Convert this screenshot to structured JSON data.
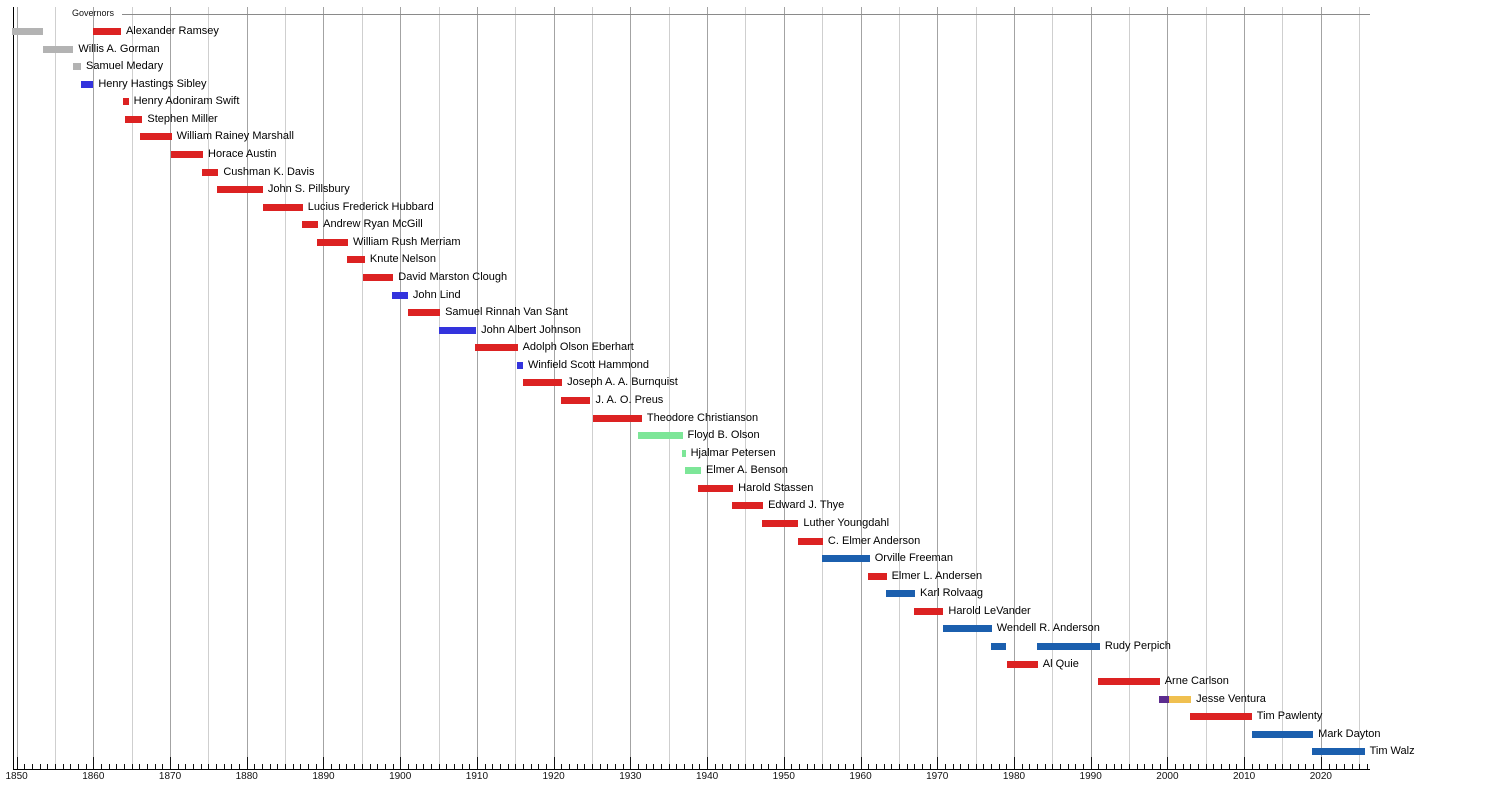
{
  "chart_data": {
    "type": "timeline",
    "title": "Governors",
    "subtitle": "",
    "x_axis": {
      "unit": "year",
      "range": [
        1849.4,
        2026.4
      ],
      "tick_labels": [
        1850,
        1860,
        1870,
        1880,
        1890,
        1900,
        1910,
        1920,
        1930,
        1940,
        1950,
        1960,
        1970,
        1980,
        1990,
        2000,
        2010,
        2020
      ],
      "gridline_step": 5,
      "gridline_start": 1850,
      "gridline_end": 2025,
      "minor_tick_step": 1,
      "grid_on": true
    },
    "party_colors": {
      "territorial": "#b3b3b3",
      "republican": "#dc2222",
      "democratic": "#3333dd",
      "dfl": "#1b5fae",
      "farmer_labor": "#7de698",
      "reform": "#5c2c8e",
      "independence": "#f0c050"
    },
    "rows": [
      {
        "name": "Alexander Ramsey",
        "terms": [
          {
            "party": "territorial",
            "from": 1849.4,
            "to": 1853.4
          },
          {
            "party": "republican",
            "from": 1860.0,
            "to": 1863.6
          }
        ]
      },
      {
        "name": "Willis A. Gorman",
        "terms": [
          {
            "party": "territorial",
            "from": 1853.4,
            "to": 1857.4
          }
        ]
      },
      {
        "name": "Samuel Medary",
        "terms": [
          {
            "party": "territorial",
            "from": 1857.4,
            "to": 1858.4
          }
        ]
      },
      {
        "name": "Henry Hastings Sibley",
        "terms": [
          {
            "party": "democratic",
            "from": 1858.4,
            "to": 1860.0
          }
        ]
      },
      {
        "name": "Henry Adoniram Swift",
        "terms": [
          {
            "party": "republican",
            "from": 1863.9,
            "to": 1864.6
          }
        ]
      },
      {
        "name": "Stephen Miller",
        "terms": [
          {
            "party": "republican",
            "from": 1864.1,
            "to": 1866.4
          }
        ]
      },
      {
        "name": "William Rainey Marshall",
        "terms": [
          {
            "party": "republican",
            "from": 1866.1,
            "to": 1870.2
          }
        ]
      },
      {
        "name": "Horace Austin",
        "terms": [
          {
            "party": "republican",
            "from": 1870.1,
            "to": 1874.3
          }
        ]
      },
      {
        "name": "Cushman K. Davis",
        "terms": [
          {
            "party": "republican",
            "from": 1874.2,
            "to": 1876.3
          }
        ]
      },
      {
        "name": "John S. Pillsbury",
        "terms": [
          {
            "party": "republican",
            "from": 1876.1,
            "to": 1882.1
          }
        ]
      },
      {
        "name": "Lucius Frederick Hubbard",
        "terms": [
          {
            "party": "republican",
            "from": 1882.1,
            "to": 1887.3
          }
        ]
      },
      {
        "name": "Andrew Ryan McGill",
        "terms": [
          {
            "party": "republican",
            "from": 1887.2,
            "to": 1889.3
          }
        ]
      },
      {
        "name": "William Rush Merriam",
        "terms": [
          {
            "party": "republican",
            "from": 1889.2,
            "to": 1893.2
          }
        ]
      },
      {
        "name": "Knute Nelson",
        "terms": [
          {
            "party": "republican",
            "from": 1893.1,
            "to": 1895.4
          }
        ]
      },
      {
        "name": "David Marston Clough",
        "terms": [
          {
            "party": "republican",
            "from": 1895.2,
            "to": 1899.1
          }
        ]
      },
      {
        "name": "John Lind",
        "terms": [
          {
            "party": "democratic",
            "from": 1898.9,
            "to": 1901.0
          }
        ]
      },
      {
        "name": "Samuel Rinnah Van Sant",
        "terms": [
          {
            "party": "republican",
            "from": 1901.0,
            "to": 1905.2
          }
        ]
      },
      {
        "name": "John Albert Johnson",
        "terms": [
          {
            "party": "democratic",
            "from": 1905.1,
            "to": 1909.9
          }
        ]
      },
      {
        "name": "Adolph Olson Eberhart",
        "terms": [
          {
            "party": "republican",
            "from": 1909.8,
            "to": 1915.3
          }
        ]
      },
      {
        "name": "Winfield Scott Hammond",
        "terms": [
          {
            "party": "democratic",
            "from": 1915.2,
            "to": 1916.0
          }
        ]
      },
      {
        "name": "Joseph A. A. Burnquist",
        "terms": [
          {
            "party": "republican",
            "from": 1916.0,
            "to": 1921.1
          }
        ]
      },
      {
        "name": "J. A. O. Preus",
        "terms": [
          {
            "party": "republican",
            "from": 1921.0,
            "to": 1924.8
          }
        ]
      },
      {
        "name": "Theodore Christianson",
        "terms": [
          {
            "party": "republican",
            "from": 1925.1,
            "to": 1931.5
          }
        ]
      },
      {
        "name": "Floyd B. Olson",
        "terms": [
          {
            "party": "farmer_labor",
            "from": 1931.0,
            "to": 1936.8
          }
        ]
      },
      {
        "name": "Hjalmar Petersen",
        "terms": [
          {
            "party": "farmer_labor",
            "from": 1936.7,
            "to": 1937.2
          }
        ]
      },
      {
        "name": "Elmer A. Benson",
        "terms": [
          {
            "party": "farmer_labor",
            "from": 1937.1,
            "to": 1939.2
          }
        ]
      },
      {
        "name": "Harold Stassen",
        "terms": [
          {
            "party": "republican",
            "from": 1938.8,
            "to": 1943.4
          }
        ]
      },
      {
        "name": "Edward J. Thye",
        "terms": [
          {
            "party": "republican",
            "from": 1943.3,
            "to": 1947.3
          }
        ]
      },
      {
        "name": "Luther Youngdahl",
        "terms": [
          {
            "party": "republican",
            "from": 1947.2,
            "to": 1951.9
          }
        ]
      },
      {
        "name": "C. Elmer Anderson",
        "terms": [
          {
            "party": "republican",
            "from": 1951.8,
            "to": 1955.1
          }
        ]
      },
      {
        "name": "Orville Freeman",
        "terms": [
          {
            "party": "dfl",
            "from": 1955.0,
            "to": 1961.2
          }
        ]
      },
      {
        "name": "Elmer L. Andersen",
        "terms": [
          {
            "party": "republican",
            "from": 1961.0,
            "to": 1963.4
          }
        ]
      },
      {
        "name": "Karl Rolvaag",
        "terms": [
          {
            "party": "dfl",
            "from": 1963.3,
            "to": 1967.1
          }
        ]
      },
      {
        "name": "Harold LeVander",
        "terms": [
          {
            "party": "republican",
            "from": 1967.0,
            "to": 1970.8
          }
        ]
      },
      {
        "name": "Wendell R. Anderson",
        "terms": [
          {
            "party": "dfl",
            "from": 1970.7,
            "to": 1977.1
          }
        ]
      },
      {
        "name": "Rudy Perpich",
        "terms": [
          {
            "party": "dfl",
            "from": 1977.0,
            "to": 1978.9
          },
          {
            "party": "dfl",
            "from": 1983.0,
            "to": 1991.2
          }
        ]
      },
      {
        "name": "Al Quie",
        "terms": [
          {
            "party": "republican",
            "from": 1979.1,
            "to": 1983.1
          }
        ]
      },
      {
        "name": "Arne Carlson",
        "terms": [
          {
            "party": "republican",
            "from": 1990.9,
            "to": 1999.0
          }
        ]
      },
      {
        "name": "Jesse Ventura",
        "terms": [
          {
            "party": "reform",
            "from": 1998.9,
            "to": 2000.2
          },
          {
            "party": "independence",
            "from": 2000.2,
            "to": 2003.1
          }
        ]
      },
      {
        "name": "Tim Pawlenty",
        "terms": [
          {
            "party": "republican",
            "from": 2003.0,
            "to": 2011.0
          }
        ]
      },
      {
        "name": "Mark Dayton",
        "terms": [
          {
            "party": "dfl",
            "from": 2011.0,
            "to": 2019.0
          }
        ]
      },
      {
        "name": "Tim Walz",
        "terms": [
          {
            "party": "dfl",
            "from": 2018.9,
            "to": 2025.7
          }
        ]
      }
    ]
  }
}
